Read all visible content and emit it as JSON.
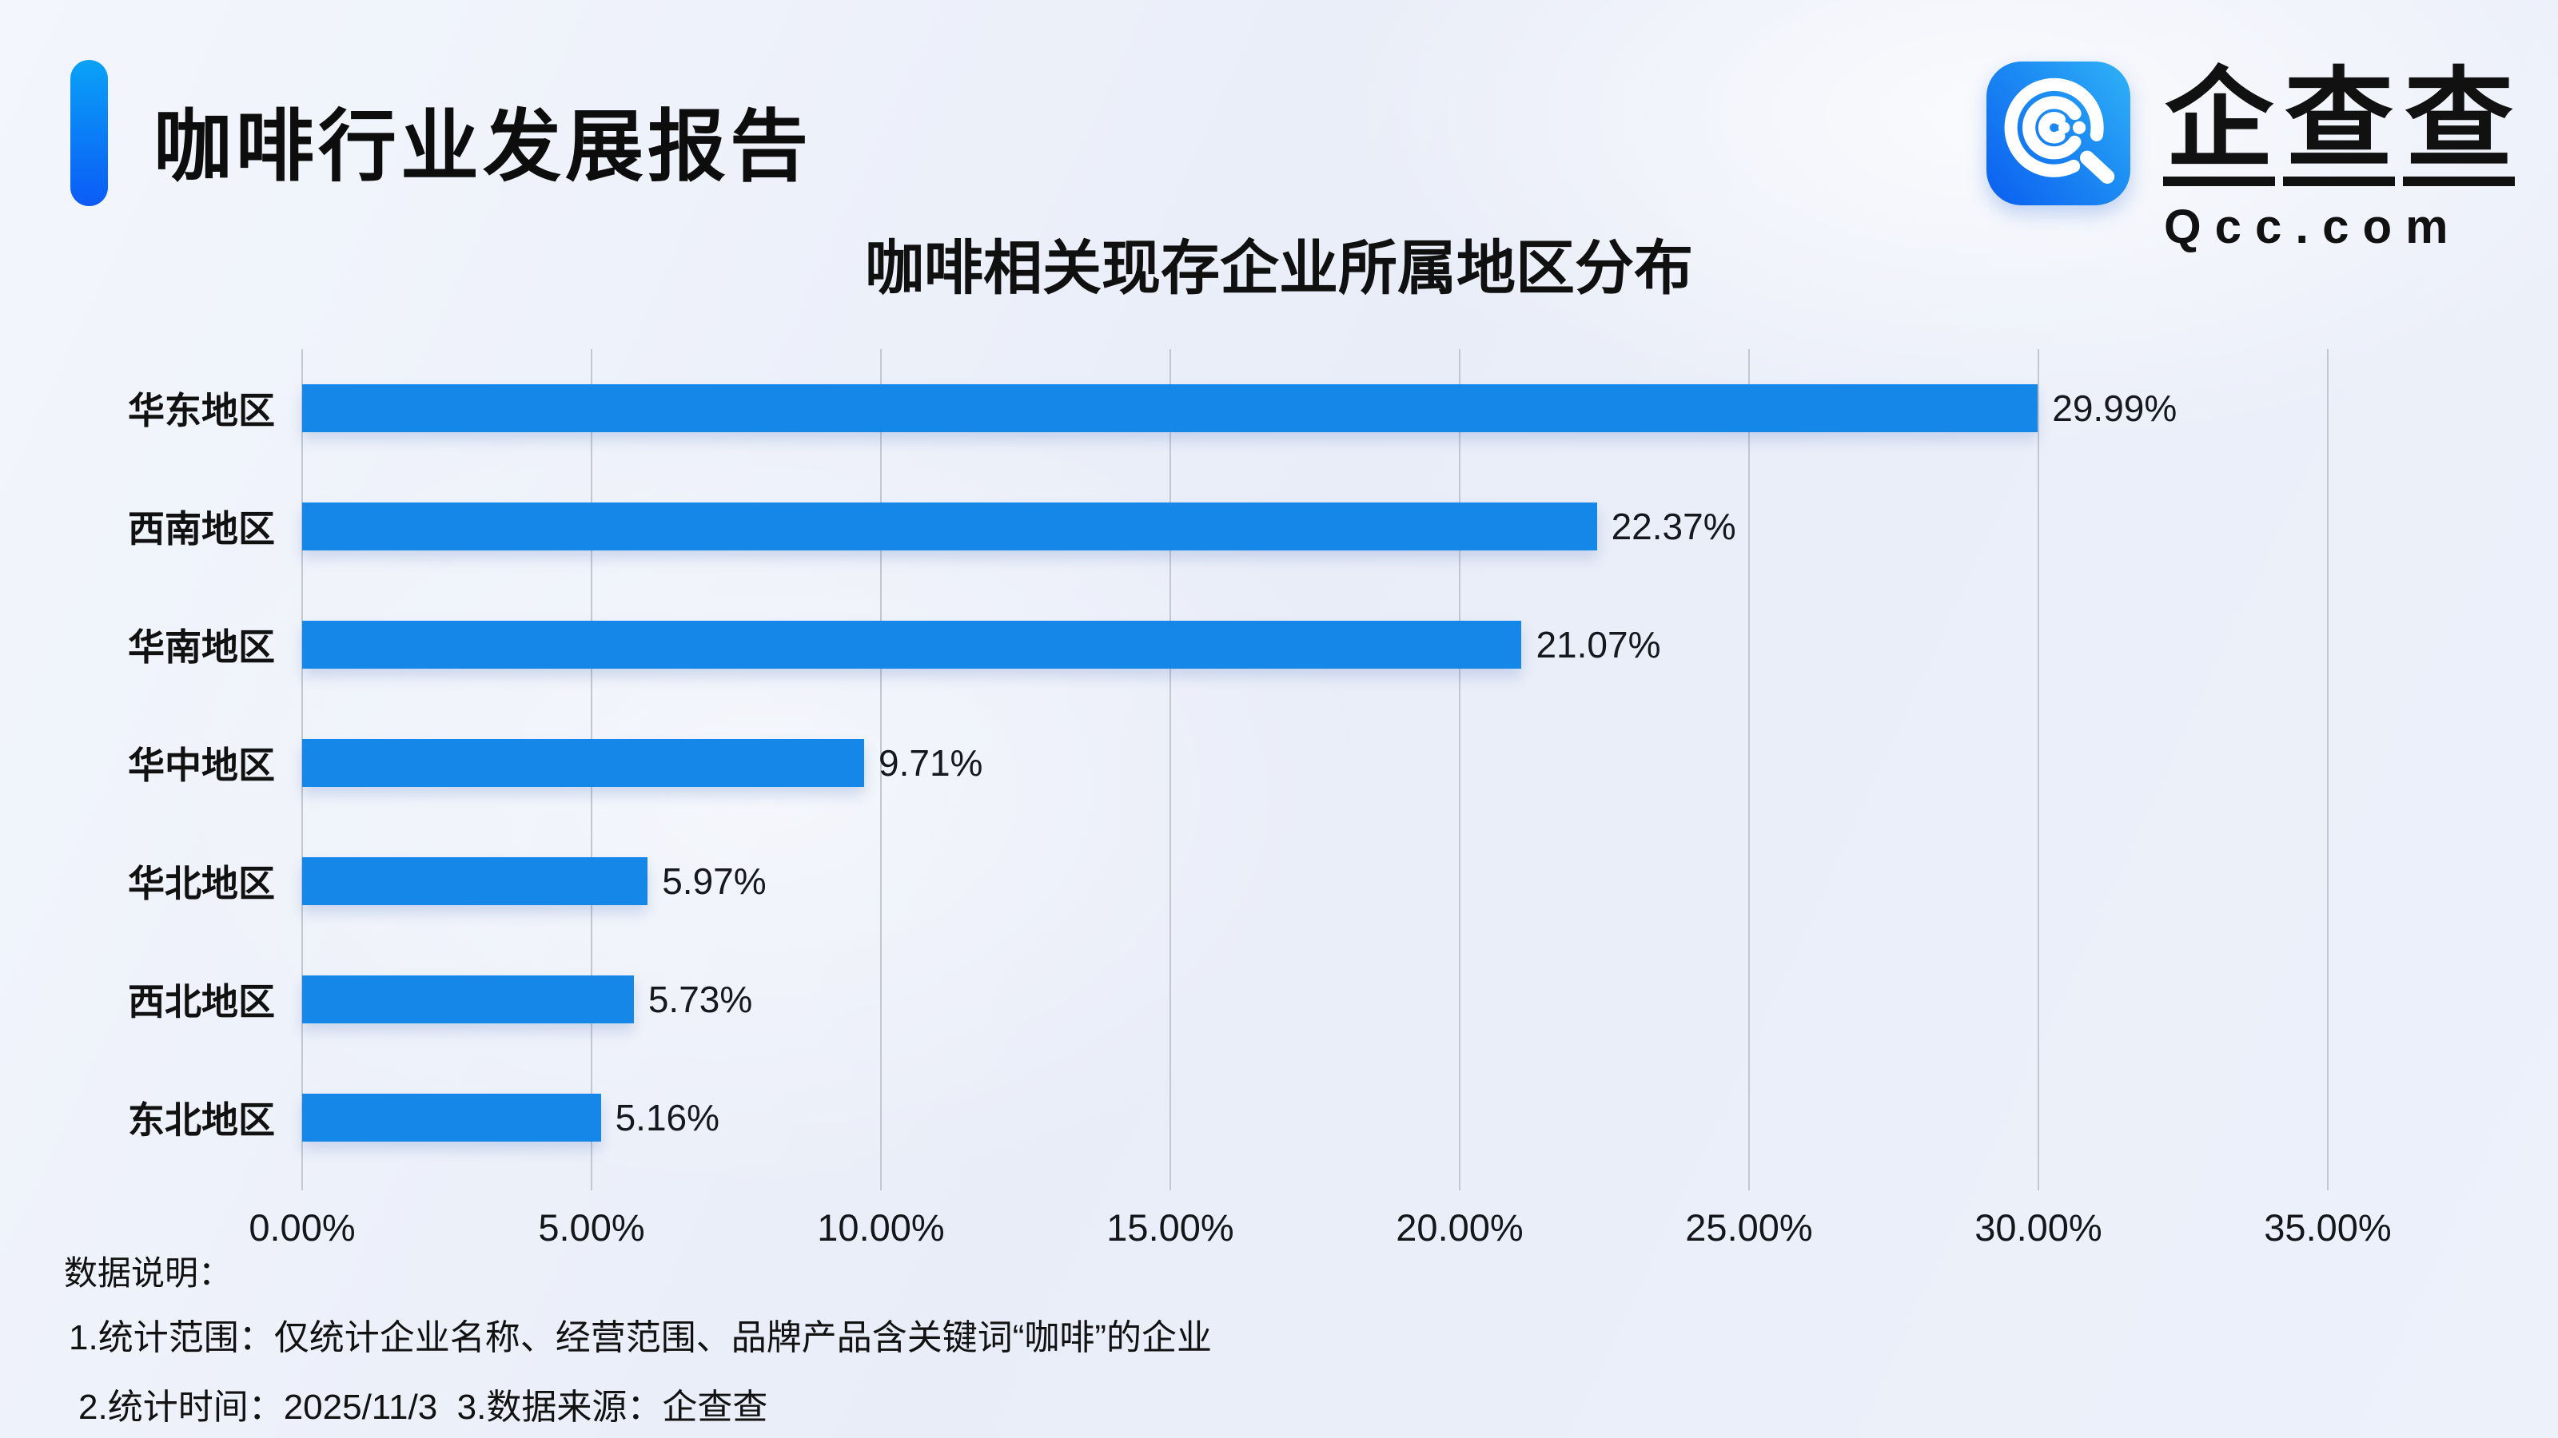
{
  "header": {
    "title": "咖啡行业发展报告",
    "logo": {
      "brand": "企查查",
      "domain": "Qcc.com"
    }
  },
  "chart_data": {
    "type": "bar",
    "orientation": "horizontal",
    "title": "咖啡相关现存企业所属地区分布",
    "categories": [
      "华东地区",
      "西南地区",
      "华南地区",
      "华中地区",
      "华北地区",
      "西北地区",
      "东北地区"
    ],
    "values": [
      29.99,
      22.37,
      21.07,
      9.71,
      5.97,
      5.73,
      5.16
    ],
    "value_labels": [
      "29.99%",
      "22.37%",
      "21.07%",
      "9.71%",
      "5.97%",
      "5.73%",
      "5.16%"
    ],
    "x_ticks": [
      "0.00%",
      "5.00%",
      "10.00%",
      "15.00%",
      "20.00%",
      "25.00%",
      "30.00%",
      "35.00%"
    ],
    "xlim": [
      0,
      35
    ],
    "grid": true,
    "legend": "none",
    "bar_color": "#1587E9"
  },
  "footer": {
    "heading": "数据说明：",
    "note1": "1.统计范围：仅统计企业名称、经营范围、品牌产品含关键词“咖啡”的企业",
    "note2": "2.统计时间：2025/11/3  3.数据来源：企查查"
  },
  "colors": {
    "bar": "#1587E9",
    "accent_top": "#0AA2F7",
    "accent_bottom": "#0B5BF6",
    "icon_deep": "#0B5EF0",
    "icon_light": "#2FB3F7",
    "gridline": "#C3C7D2",
    "background": "#EDF1FA",
    "text": "#111111"
  }
}
